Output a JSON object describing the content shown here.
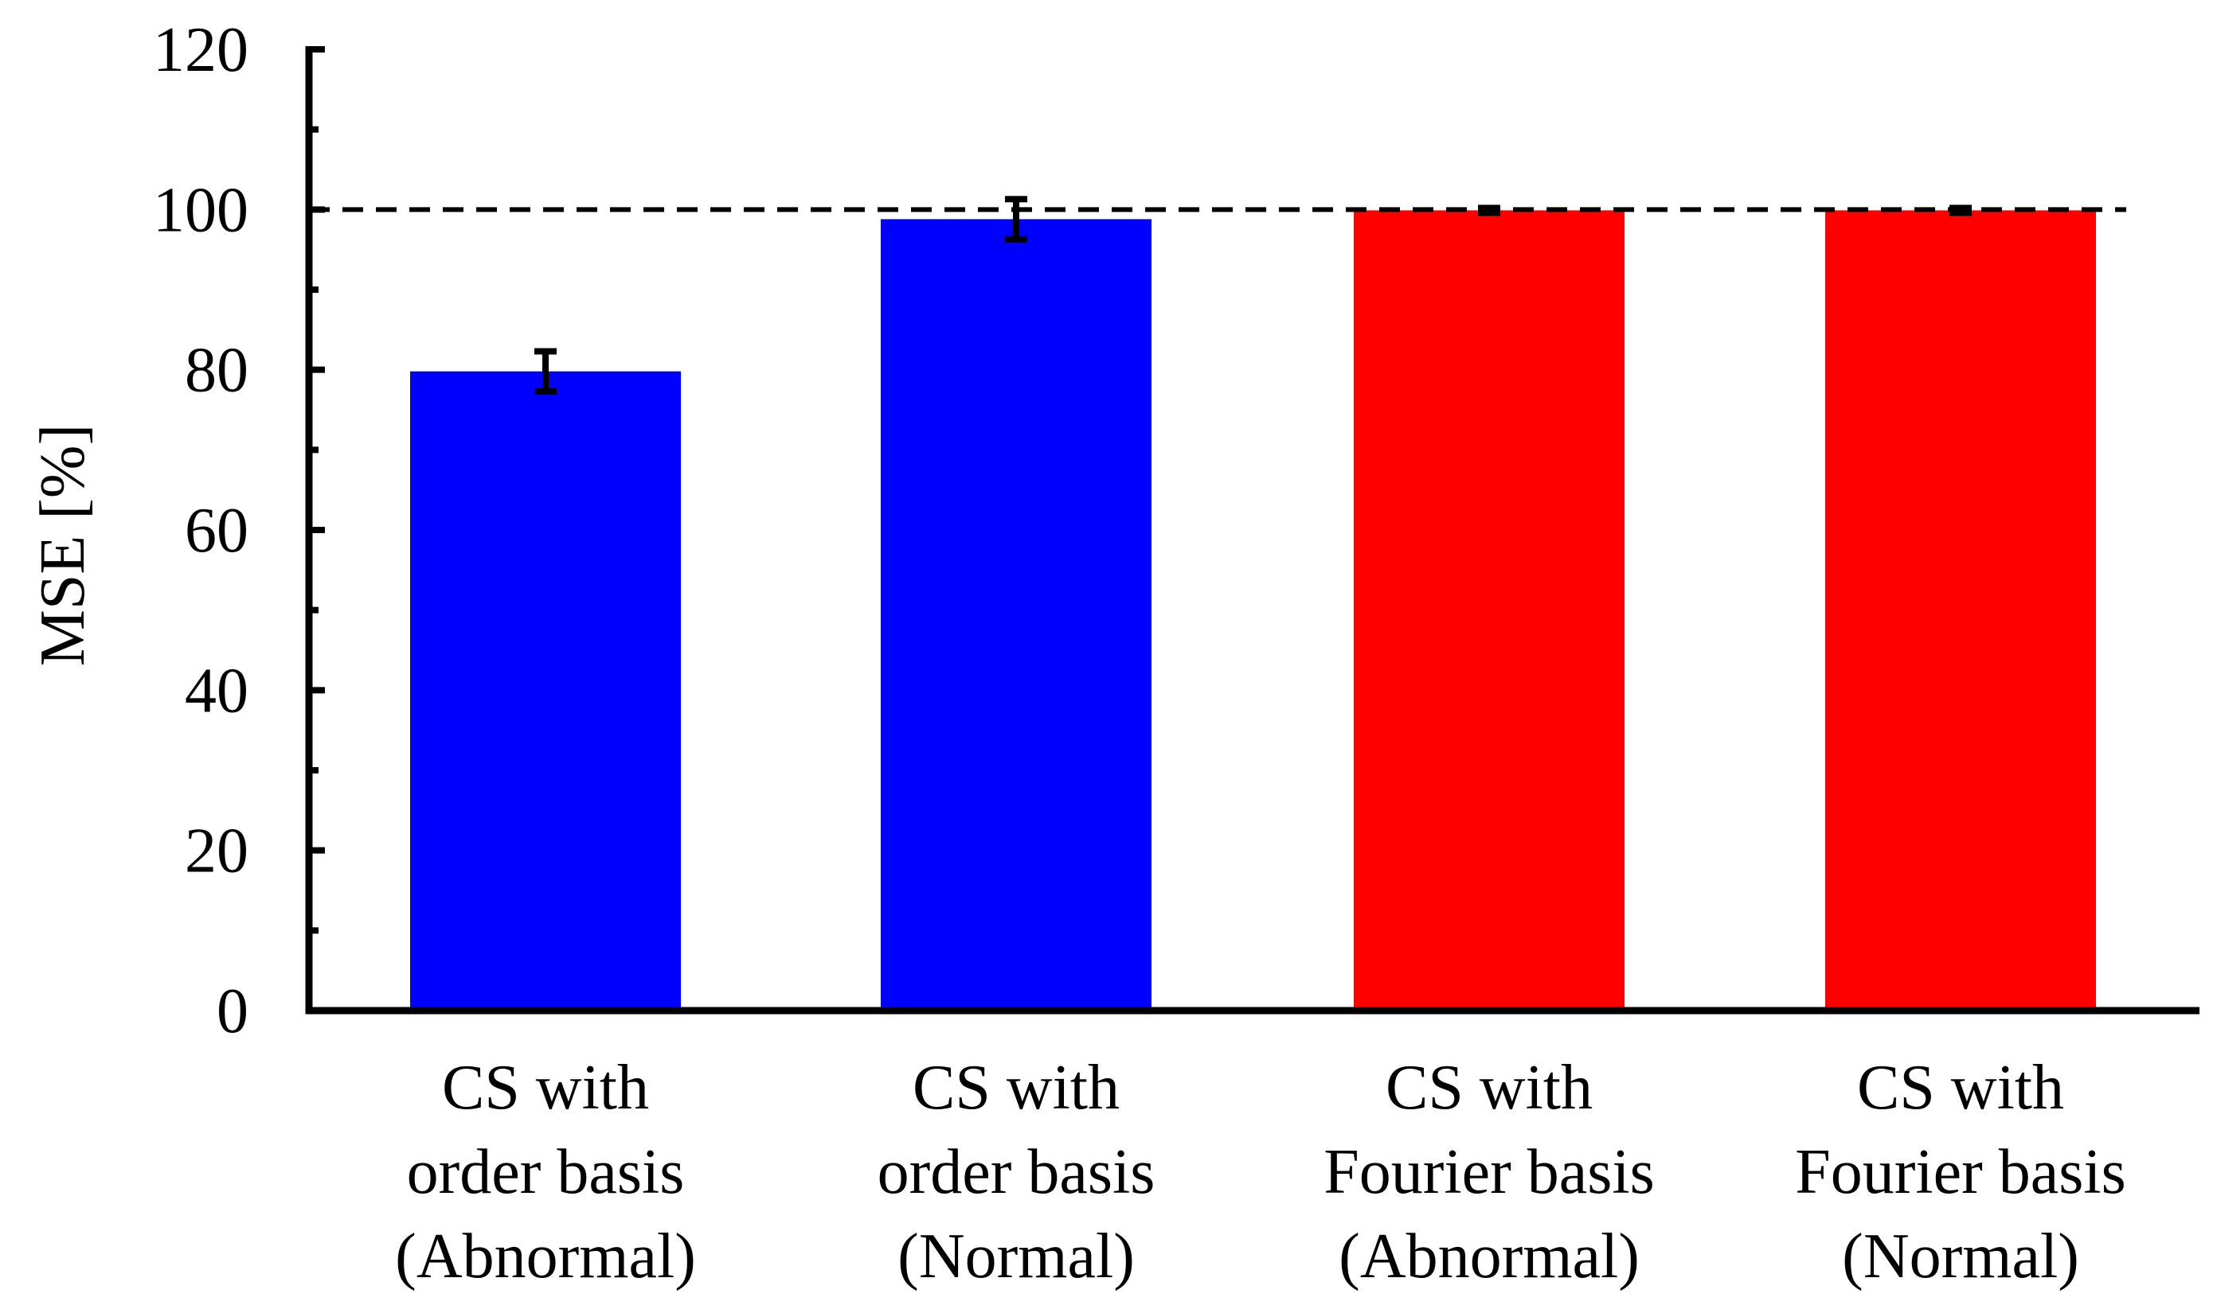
{
  "chart_data": {
    "type": "bar",
    "categories": [
      [
        "CS with",
        "order basis",
        "(Abnormal)"
      ],
      [
        "CS with",
        "order basis",
        "(Normal)"
      ],
      [
        "CS with",
        "Fourier basis",
        "(Abnormal)"
      ],
      [
        "CS with",
        "Fourier basis",
        "(Normal)"
      ]
    ],
    "values": [
      79.8,
      98.8,
      99.9,
      99.9
    ],
    "errors": [
      2.5,
      2.5,
      0.3,
      0.3
    ],
    "bar_colors": [
      "#0000ff",
      "#0000ff",
      "#ff0000",
      "#ff0000"
    ],
    "ylabel": "MSE [%]",
    "ylim": [
      0,
      120
    ],
    "yticks": [
      0,
      20,
      40,
      60,
      80,
      100,
      120
    ],
    "reference_line": 100,
    "grid": false
  }
}
